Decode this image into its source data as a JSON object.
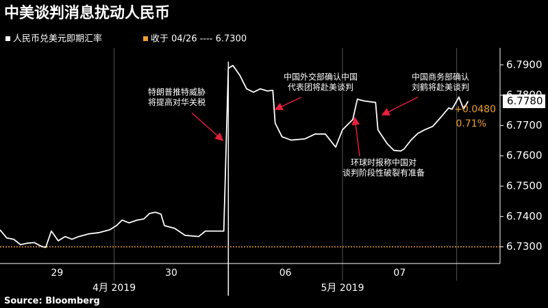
{
  "chart_data": {
    "type": "line",
    "title": "中美谈判消息扰动人民币",
    "source": "Source: Bloomberg",
    "series": [
      {
        "name": "人民币兑美元即期汇率",
        "color": "#ffffff",
        "x": [
          0,
          0.06,
          0.12,
          0.18,
          0.24,
          0.3,
          0.36,
          0.4,
          0.45,
          0.51,
          0.57,
          0.63,
          0.69,
          0.78,
          0.87,
          0.96,
          1.02,
          1.07,
          1.13,
          1.2,
          1.26,
          1.31,
          1.36,
          1.41,
          1.44,
          1.53,
          1.62,
          1.74,
          1.8,
          1.96,
          2.0,
          2.04,
          2.1,
          2.16,
          2.22,
          2.28,
          2.34,
          2.39,
          2.41,
          2.47,
          2.55,
          2.67,
          2.76,
          2.85,
          2.94,
          3.0,
          3.09,
          3.13,
          3.19,
          3.29,
          3.31,
          3.39,
          3.45,
          3.51,
          3.54,
          3.6,
          3.66,
          3.72,
          3.79,
          3.87,
          3.93,
          3.96,
          4.02,
          4.06,
          4.1
        ],
        "values": [
          6.7356,
          6.7329,
          6.7325,
          6.7307,
          6.7312,
          6.7314,
          6.7302,
          6.7298,
          6.7352,
          6.732,
          6.7334,
          6.7325,
          6.7334,
          6.7343,
          6.7347,
          6.7356,
          6.737,
          6.7388,
          6.7379,
          6.7388,
          6.7392,
          6.741,
          6.7414,
          6.7408,
          6.737,
          6.7361,
          6.7338,
          6.7334,
          6.7352,
          6.7352,
          6.7889,
          6.7898,
          6.7866,
          6.7821,
          6.781,
          6.7821,
          6.7814,
          6.7816,
          6.7708,
          6.7663,
          6.7652,
          6.7656,
          6.7672,
          6.7672,
          6.7629,
          6.7686,
          6.772,
          6.7787,
          6.7781,
          6.7776,
          6.7686,
          6.7641,
          6.7618,
          6.7616,
          6.7623,
          6.7652,
          6.7674,
          6.7686,
          6.7697,
          6.7731,
          6.7758,
          6.7754,
          6.7794,
          6.7754,
          6.778
        ],
        "end_label": "6.7780",
        "change": "+0.0480",
        "change_pct": "0.71%"
      }
    ],
    "reference": {
      "value": 6.73,
      "label": "收于 04/26 ---- 6.7300",
      "color": "#f0a030"
    },
    "xlim": [
      0,
      4.38
    ],
    "xticks": [
      {
        "value": 0.5,
        "label": "29"
      },
      {
        "value": 1.5,
        "label": "30"
      },
      {
        "value": 2.5,
        "label": "06"
      },
      {
        "value": 3.5,
        "label": "07"
      }
    ],
    "x_groups": [
      {
        "value": 1,
        "label": "4月 2019"
      },
      {
        "value": 3,
        "label": "5月 2019"
      }
    ],
    "ylim": [
      6.7245,
      6.7956
    ],
    "yticks": [
      {
        "value": 6.73,
        "label": "6.7300"
      },
      {
        "value": 6.74,
        "label": "6.7400"
      },
      {
        "value": 6.75,
        "label": "6.7500"
      },
      {
        "value": 6.76,
        "label": "6.7600"
      },
      {
        "value": 6.77,
        "label": "6.7700"
      },
      {
        "value": 6.78,
        "label": "6.7800"
      },
      {
        "value": 6.79,
        "label": "6.7900"
      }
    ],
    "annotations": [
      {
        "lines": [
          "特朗普推特威胁",
          "将提高对华关税"
        ]
      },
      {
        "lines": [
          "中国外交部确认中国",
          "代表团将赴美谈判"
        ]
      },
      {
        "lines": [
          "环球时报称中国对",
          "谈判阶段性破裂有准备"
        ]
      },
      {
        "lines": [
          "中国商务部确认",
          "刘鹤将赴美谈判"
        ]
      }
    ]
  }
}
